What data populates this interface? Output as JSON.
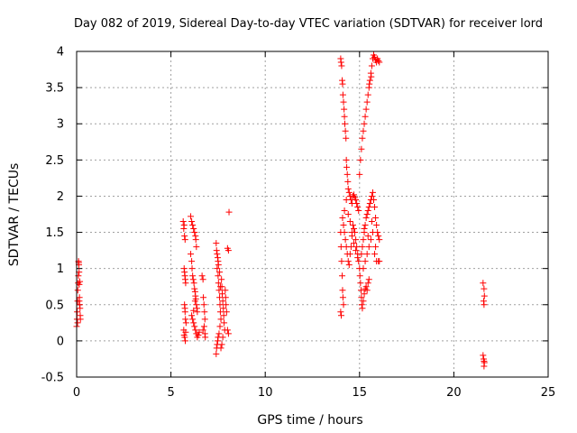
{
  "chart_data": {
    "type": "scatter",
    "title": "Day 082 of 2019, Sidereal Day-to-day VTEC variation (SDTVAR) for receiver lord",
    "xlabel": "GPS time / hours",
    "ylabel": "SDTVAR / TECUs",
    "xlim": [
      0,
      25
    ],
    "ylim": [
      -0.5,
      4
    ],
    "grid": true,
    "marker": "+",
    "marker_color": "#ff0000",
    "x_ticks": [
      {
        "value": 0,
        "label": "0"
      },
      {
        "value": 5,
        "label": "5"
      },
      {
        "value": 10,
        "label": "10"
      },
      {
        "value": 15,
        "label": "15"
      },
      {
        "value": 20,
        "label": "20"
      },
      {
        "value": 25,
        "label": "25"
      }
    ],
    "y_ticks": [
      {
        "value": -0.5,
        "label": "-0.5"
      },
      {
        "value": 0,
        "label": "0"
      },
      {
        "value": 0.5,
        "label": "0.5"
      },
      {
        "value": 1,
        "label": "1"
      },
      {
        "value": 1.5,
        "label": "1.5"
      },
      {
        "value": 2,
        "label": "2"
      },
      {
        "value": 2.5,
        "label": "2.5"
      },
      {
        "value": 3,
        "label": "3"
      },
      {
        "value": 3.5,
        "label": "3.5"
      },
      {
        "value": 4,
        "label": "4"
      }
    ],
    "series": [
      {
        "name": "SDTVAR",
        "points": [
          [
            0.0,
            0.2
          ],
          [
            0.02,
            0.3
          ],
          [
            0.03,
            0.4
          ],
          [
            0.05,
            0.55
          ],
          [
            0.06,
            0.7
          ],
          [
            0.08,
            0.8
          ],
          [
            0.1,
            1.1
          ],
          [
            0.12,
            1.05
          ],
          [
            0.13,
            0.95
          ],
          [
            0.14,
            0.78
          ],
          [
            0.15,
            0.6
          ],
          [
            0.16,
            0.5
          ],
          [
            0.18,
            0.45
          ],
          [
            0.19,
            0.35
          ],
          [
            0.2,
            0.3
          ],
          [
            0.05,
            0.25
          ],
          [
            0.09,
            0.9
          ],
          [
            0.11,
            1.08
          ],
          [
            0.17,
            0.82
          ],
          [
            0.14,
            0.55
          ],
          [
            5.65,
            1.65
          ],
          [
            5.68,
            1.55
          ],
          [
            5.7,
            1.6
          ],
          [
            5.72,
            1.45
          ],
          [
            5.75,
            1.4
          ],
          [
            5.7,
            1.0
          ],
          [
            5.72,
            0.95
          ],
          [
            5.74,
            0.9
          ],
          [
            5.76,
            0.85
          ],
          [
            5.78,
            0.8
          ],
          [
            5.72,
            0.5
          ],
          [
            5.74,
            0.45
          ],
          [
            5.75,
            0.4
          ],
          [
            5.77,
            0.3
          ],
          [
            5.8,
            0.25
          ],
          [
            5.68,
            0.15
          ],
          [
            5.7,
            0.08
          ],
          [
            5.73,
            0.05
          ],
          [
            5.76,
            0.0
          ],
          [
            5.78,
            0.12
          ],
          [
            6.05,
            1.72
          ],
          [
            6.1,
            1.65
          ],
          [
            6.15,
            1.6
          ],
          [
            6.2,
            1.55
          ],
          [
            6.25,
            1.5
          ],
          [
            6.3,
            1.45
          ],
          [
            6.32,
            1.4
          ],
          [
            6.35,
            1.3
          ],
          [
            6.05,
            1.2
          ],
          [
            6.1,
            1.1
          ],
          [
            6.12,
            1.0
          ],
          [
            6.15,
            0.9
          ],
          [
            6.18,
            0.85
          ],
          [
            6.22,
            0.8
          ],
          [
            6.25,
            0.72
          ],
          [
            6.28,
            0.68
          ],
          [
            6.3,
            0.62
          ],
          [
            6.32,
            0.58
          ],
          [
            6.35,
            0.5
          ],
          [
            6.38,
            0.45
          ],
          [
            6.4,
            0.4
          ],
          [
            6.1,
            0.35
          ],
          [
            6.15,
            0.3
          ],
          [
            6.2,
            0.25
          ],
          [
            6.25,
            0.2
          ],
          [
            6.3,
            0.15
          ],
          [
            6.35,
            0.1
          ],
          [
            6.4,
            0.05
          ],
          [
            6.45,
            0.08
          ],
          [
            6.5,
            0.12
          ],
          [
            6.2,
            0.42
          ],
          [
            6.28,
            0.55
          ],
          [
            6.65,
            0.9
          ],
          [
            6.7,
            0.85
          ],
          [
            6.72,
            0.6
          ],
          [
            6.75,
            0.5
          ],
          [
            6.78,
            0.4
          ],
          [
            6.8,
            0.3
          ],
          [
            6.76,
            0.2
          ],
          [
            6.8,
            0.1
          ],
          [
            6.82,
            0.05
          ],
          [
            6.7,
            0.15
          ],
          [
            7.4,
            1.35
          ],
          [
            7.42,
            1.25
          ],
          [
            7.45,
            1.2
          ],
          [
            7.48,
            1.15
          ],
          [
            7.5,
            1.1
          ],
          [
            7.45,
            1.0
          ],
          [
            7.5,
            0.9
          ],
          [
            7.52,
            0.8
          ],
          [
            7.55,
            0.7
          ],
          [
            7.58,
            0.6
          ],
          [
            7.6,
            0.5
          ],
          [
            7.62,
            0.4
          ],
          [
            7.65,
            0.3
          ],
          [
            7.6,
            0.2
          ],
          [
            7.55,
            0.1
          ],
          [
            7.5,
            0.05
          ],
          [
            7.45,
            -0.05
          ],
          [
            7.42,
            -0.1
          ],
          [
            7.4,
            -0.18
          ],
          [
            7.48,
            0.0
          ],
          [
            7.7,
            0.75
          ],
          [
            7.72,
            0.65
          ],
          [
            7.75,
            0.55
          ],
          [
            7.78,
            0.45
          ],
          [
            7.8,
            0.35
          ],
          [
            7.82,
            0.25
          ],
          [
            7.85,
            0.15
          ],
          [
            7.75,
            0.05
          ],
          [
            7.7,
            -0.05
          ],
          [
            7.65,
            -0.1
          ],
          [
            7.88,
            0.7
          ],
          [
            7.9,
            0.6
          ],
          [
            7.92,
            0.5
          ],
          [
            7.95,
            0.4
          ],
          [
            7.68,
            0.85
          ],
          [
            7.58,
            0.95
          ],
          [
            7.52,
            1.05
          ],
          [
            7.62,
            0.75
          ],
          [
            8.0,
            1.28
          ],
          [
            8.05,
            1.25
          ],
          [
            8.08,
            1.78
          ],
          [
            8.0,
            0.15
          ],
          [
            8.05,
            0.1
          ],
          [
            14.0,
            3.9
          ],
          [
            14.02,
            3.85
          ],
          [
            14.05,
            3.8
          ],
          [
            14.08,
            3.6
          ],
          [
            14.1,
            3.55
          ],
          [
            14.12,
            3.4
          ],
          [
            14.15,
            3.3
          ],
          [
            14.18,
            3.2
          ],
          [
            14.2,
            3.1
          ],
          [
            14.22,
            3.0
          ],
          [
            14.25,
            2.9
          ],
          [
            14.28,
            2.8
          ],
          [
            14.3,
            2.5
          ],
          [
            14.32,
            2.4
          ],
          [
            14.35,
            2.3
          ],
          [
            14.38,
            2.2
          ],
          [
            14.4,
            2.1
          ],
          [
            14.45,
            2.05
          ],
          [
            14.5,
            2.0
          ],
          [
            14.55,
            1.95
          ],
          [
            14.6,
            1.9
          ],
          [
            14.65,
            2.0
          ],
          [
            14.7,
            2.02
          ],
          [
            14.75,
            1.98
          ],
          [
            14.8,
            1.95
          ],
          [
            14.85,
            1.9
          ],
          [
            14.9,
            1.85
          ],
          [
            14.95,
            1.8
          ],
          [
            14.0,
            1.5
          ],
          [
            14.02,
            1.3
          ],
          [
            14.05,
            1.1
          ],
          [
            14.08,
            0.9
          ],
          [
            14.1,
            0.7
          ],
          [
            14.12,
            0.6
          ],
          [
            14.15,
            0.5
          ],
          [
            14.0,
            0.4
          ],
          [
            14.03,
            0.35
          ],
          [
            14.1,
            1.7
          ],
          [
            14.15,
            1.6
          ],
          [
            14.2,
            1.5
          ],
          [
            14.25,
            1.4
          ],
          [
            14.3,
            1.3
          ],
          [
            14.35,
            1.2
          ],
          [
            14.4,
            1.1
          ],
          [
            14.45,
            1.05
          ],
          [
            14.5,
            1.2
          ],
          [
            14.55,
            1.3
          ],
          [
            14.6,
            1.5
          ],
          [
            14.65,
            1.6
          ],
          [
            14.7,
            1.55
          ],
          [
            14.75,
            1.5
          ],
          [
            14.8,
            1.4
          ],
          [
            14.85,
            1.3
          ],
          [
            14.9,
            1.2
          ],
          [
            14.95,
            1.1
          ],
          [
            14.2,
            1.8
          ],
          [
            14.3,
            1.95
          ],
          [
            14.4,
            1.75
          ],
          [
            14.5,
            1.65
          ],
          [
            14.6,
            1.45
          ],
          [
            14.7,
            1.35
          ],
          [
            14.8,
            1.25
          ],
          [
            14.9,
            1.15
          ],
          [
            15.0,
            1.0
          ],
          [
            15.02,
            0.9
          ],
          [
            15.05,
            0.8
          ],
          [
            15.08,
            0.7
          ],
          [
            15.1,
            0.6
          ],
          [
            15.12,
            0.5
          ],
          [
            15.15,
            0.45
          ],
          [
            15.2,
            0.55
          ],
          [
            15.25,
            0.65
          ],
          [
            15.3,
            0.72
          ],
          [
            15.35,
            0.75
          ],
          [
            15.4,
            0.7
          ],
          [
            15.45,
            0.8
          ],
          [
            15.5,
            0.85
          ],
          [
            15.1,
            1.2
          ],
          [
            15.15,
            1.3
          ],
          [
            15.2,
            1.4
          ],
          [
            15.25,
            1.5
          ],
          [
            15.3,
            1.6
          ],
          [
            15.35,
            1.7
          ],
          [
            15.4,
            1.75
          ],
          [
            15.45,
            1.8
          ],
          [
            15.5,
            1.85
          ],
          [
            15.55,
            1.9
          ],
          [
            15.6,
            1.95
          ],
          [
            15.65,
            2.0
          ],
          [
            15.7,
            2.05
          ],
          [
            15.75,
            1.95
          ],
          [
            15.8,
            1.85
          ],
          [
            15.85,
            1.7
          ],
          [
            15.9,
            1.6
          ],
          [
            15.95,
            1.5
          ],
          [
            16.0,
            1.45
          ],
          [
            16.05,
            1.4
          ],
          [
            15.2,
            1.0
          ],
          [
            15.3,
            1.1
          ],
          [
            15.4,
            1.2
          ],
          [
            15.5,
            1.3
          ],
          [
            15.6,
            1.4
          ],
          [
            15.7,
            1.5
          ],
          [
            15.8,
            1.2
          ],
          [
            15.9,
            1.1
          ],
          [
            16.0,
            1.1
          ],
          [
            16.05,
            1.1
          ],
          [
            15.25,
            1.55
          ],
          [
            15.45,
            1.45
          ],
          [
            15.65,
            1.65
          ],
          [
            15.85,
            1.3
          ],
          [
            15.0,
            2.3
          ],
          [
            15.05,
            2.5
          ],
          [
            15.1,
            2.65
          ],
          [
            15.15,
            2.8
          ],
          [
            15.2,
            2.9
          ],
          [
            15.25,
            3.0
          ],
          [
            15.3,
            3.1
          ],
          [
            15.35,
            3.2
          ],
          [
            15.4,
            3.3
          ],
          [
            15.45,
            3.4
          ],
          [
            15.5,
            3.5
          ],
          [
            15.55,
            3.6
          ],
          [
            15.6,
            3.7
          ],
          [
            15.65,
            3.8
          ],
          [
            15.7,
            3.9
          ],
          [
            15.75,
            3.95
          ],
          [
            15.8,
            3.92
          ],
          [
            15.85,
            3.88
          ],
          [
            15.9,
            3.85
          ],
          [
            15.95,
            3.9
          ],
          [
            16.0,
            3.87
          ],
          [
            16.05,
            3.85
          ],
          [
            15.62,
            3.65
          ],
          [
            15.52,
            3.55
          ],
          [
            21.55,
            0.8
          ],
          [
            21.6,
            0.72
          ],
          [
            21.62,
            0.62
          ],
          [
            21.58,
            0.55
          ],
          [
            21.6,
            0.5
          ],
          [
            21.55,
            -0.2
          ],
          [
            21.58,
            -0.25
          ],
          [
            21.6,
            -0.28
          ],
          [
            21.62,
            -0.3
          ],
          [
            21.6,
            -0.35
          ]
        ]
      }
    ]
  }
}
